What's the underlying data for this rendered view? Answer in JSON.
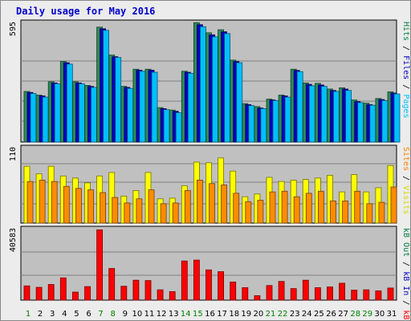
{
  "title": "Daily usage for May 2016",
  "chart_data": [
    {
      "type": "bar",
      "panel": "hits-files-pages",
      "categories": [
        "1",
        "2",
        "3",
        "4",
        "5",
        "6",
        "7",
        "8",
        "9",
        "10",
        "11",
        "12",
        "13",
        "14",
        "15",
        "16",
        "17",
        "18",
        "19",
        "20",
        "21",
        "22",
        "23",
        "24",
        "25",
        "26",
        "27",
        "28",
        "29",
        "30",
        "31"
      ],
      "ymax_label": "595",
      "ylim": [
        0,
        595
      ],
      "legend": [
        "Pages",
        "Files",
        "Hits"
      ],
      "legend_colors": [
        "#00c0ff",
        "#0000c0",
        "#008040"
      ],
      "series": [
        {
          "name": "Hits",
          "color": "#2e8b57",
          "values": [
            250,
            232,
            298,
            398,
            298,
            280,
            568,
            430,
            275,
            360,
            360,
            170,
            158,
            350,
            590,
            540,
            555,
            405,
            190,
            175,
            212,
            232,
            360,
            292,
            290,
            262,
            268,
            208,
            192,
            215,
            248
          ]
        },
        {
          "name": "Files",
          "color": "#0000c0",
          "values": [
            245,
            228,
            292,
            392,
            292,
            275,
            560,
            422,
            270,
            355,
            355,
            165,
            152,
            345,
            580,
            530,
            545,
            398,
            185,
            168,
            208,
            228,
            354,
            285,
            282,
            255,
            262,
            200,
            185,
            210,
            242
          ]
        },
        {
          "name": "Pages",
          "color": "#00bfff",
          "values": [
            240,
            222,
            288,
            385,
            288,
            270,
            552,
            418,
            265,
            350,
            345,
            160,
            145,
            340,
            570,
            520,
            536,
            392,
            180,
            165,
            205,
            222,
            348,
            278,
            275,
            250,
            255,
            195,
            182,
            205,
            238
          ]
        }
      ]
    },
    {
      "type": "bar",
      "panel": "visits-sites",
      "categories": [
        "1",
        "2",
        "3",
        "4",
        "5",
        "6",
        "7",
        "8",
        "9",
        "10",
        "11",
        "12",
        "13",
        "14",
        "15",
        "16",
        "17",
        "18",
        "19",
        "20",
        "21",
        "22",
        "23",
        "24",
        "25",
        "26",
        "27",
        "28",
        "29",
        "30",
        "31"
      ],
      "ymax_label": "110",
      "ylim": [
        0,
        110
      ],
      "legend": [
        "Visits",
        "Sites"
      ],
      "legend_colors": [
        "#d8d800",
        "#ff8000"
      ],
      "series": [
        {
          "name": "Visits",
          "color": "#ffff00",
          "values": [
            82,
            71,
            82,
            68,
            65,
            58,
            68,
            73,
            39,
            47,
            73,
            35,
            36,
            54,
            88,
            87,
            94,
            75,
            38,
            42,
            66,
            60,
            62,
            63,
            65,
            69,
            45,
            70,
            45,
            51,
            83
          ]
        },
        {
          "name": "Sites",
          "color": "#ff8c00",
          "values": [
            60,
            62,
            60,
            53,
            50,
            48,
            44,
            37,
            29,
            35,
            48,
            28,
            29,
            47,
            62,
            57,
            55,
            43,
            31,
            33,
            45,
            46,
            38,
            43,
            46,
            32,
            32,
            46,
            28,
            30,
            52
          ]
        }
      ]
    },
    {
      "type": "bar",
      "panel": "kbytes",
      "categories": [
        "1",
        "2",
        "3",
        "4",
        "5",
        "6",
        "7",
        "8",
        "9",
        "10",
        "11",
        "12",
        "13",
        "14",
        "15",
        "16",
        "17",
        "18",
        "19",
        "20",
        "21",
        "22",
        "23",
        "24",
        "25",
        "26",
        "27",
        "28",
        "29",
        "30",
        "31"
      ],
      "ymax_label": "40583",
      "ylim": [
        0,
        40583
      ],
      "legend": [
        "kB F",
        "kB In",
        "kB Out"
      ],
      "legend_colors": [
        "#ff0000",
        "#0000c0",
        "#008040"
      ],
      "series": [
        {
          "name": "kB F",
          "color": "#ff0000",
          "values": [
            8000,
            7200,
            8800,
            12500,
            4500,
            7600,
            39500,
            17800,
            7800,
            11200,
            11000,
            5800,
            4800,
            22000,
            22500,
            17000,
            16000,
            10200,
            7000,
            2500,
            8200,
            10500,
            6500,
            11200,
            7000,
            7400,
            9500,
            5600,
            5800,
            5200,
            6800
          ]
        }
      ]
    }
  ]
}
